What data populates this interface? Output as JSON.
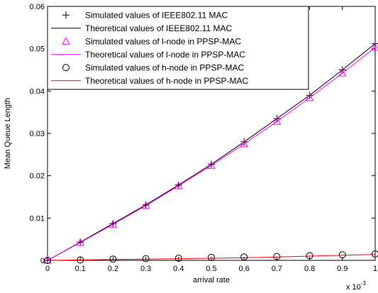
{
  "chart_data": {
    "type": "line",
    "title": "",
    "xlabel": "arrival rate",
    "ylabel": "Mean Queue Length",
    "x_exponent": {
      "base": "x 10",
      "power": "-3"
    },
    "xlim": [
      0,
      1
    ],
    "ylim": [
      0,
      0.06
    ],
    "x_ticks": [
      0,
      0.1,
      0.2,
      0.3,
      0.4,
      0.5,
      0.6,
      0.7,
      0.8,
      0.9,
      1
    ],
    "x_tick_labels": [
      "0",
      "0.1",
      "0.2",
      "0.3",
      "0.4",
      "0.5",
      "0.6",
      "0.7",
      "0.8",
      "0.9",
      "1"
    ],
    "y_ticks": [
      0,
      0.01,
      0.02,
      0.03,
      0.04,
      0.05,
      0.06
    ],
    "y_tick_labels": [
      "0",
      "0.01",
      "0.02",
      "0.03",
      "0.04",
      "0.05",
      "0.06"
    ],
    "grid": false,
    "legend_position": "top-left",
    "x": [
      0,
      0.1,
      0.2,
      0.3,
      0.4,
      0.5,
      0.6,
      0.7,
      0.8,
      0.9,
      1
    ],
    "series": [
      {
        "name": "Simulated values of IEEE802.11 MAC",
        "style": "marker",
        "marker": "plus",
        "color": "#000000",
        "values": [
          0,
          0.0043,
          0.0087,
          0.0131,
          0.0178,
          0.0227,
          0.028,
          0.0335,
          0.039,
          0.045,
          0.0512
        ]
      },
      {
        "name": "Theoretical values of IEEE802.11 MAC",
        "style": "line",
        "color": "#000000",
        "values": [
          0,
          0.0043,
          0.0087,
          0.0131,
          0.0178,
          0.0227,
          0.028,
          0.0335,
          0.039,
          0.045,
          0.0512
        ]
      },
      {
        "name": "Simulated values of l-node in PPSP-MAC",
        "style": "marker",
        "marker": "triangle",
        "color": "#ff00ff",
        "values": [
          0,
          0.0042,
          0.0085,
          0.0129,
          0.0176,
          0.0224,
          0.0275,
          0.0328,
          0.0384,
          0.0442,
          0.0503
        ]
      },
      {
        "name": "Theoretical values of l-node in PPSP-MAC",
        "style": "line",
        "color": "#ff00ff",
        "values": [
          0,
          0.0042,
          0.0085,
          0.0129,
          0.0176,
          0.0224,
          0.0275,
          0.0328,
          0.0384,
          0.0442,
          0.0503
        ]
      },
      {
        "name": "Simulated values of h-node in PPSP-MAC",
        "style": "marker",
        "marker": "circle",
        "color": "#000000",
        "values": [
          0,
          0.0001,
          0.0003,
          0.0004,
          0.0005,
          0.0007,
          0.0008,
          0.0009,
          0.0011,
          0.0013,
          0.0015
        ]
      },
      {
        "name": "Theoretical values of h-node in PPSP-MAC",
        "style": "line",
        "color": "#ff0000",
        "values": [
          0,
          0.0001,
          0.0002,
          0.0003,
          0.0004,
          0.0005,
          0.0006,
          0.0008,
          0.001,
          0.0012,
          0.0014
        ]
      }
    ]
  }
}
